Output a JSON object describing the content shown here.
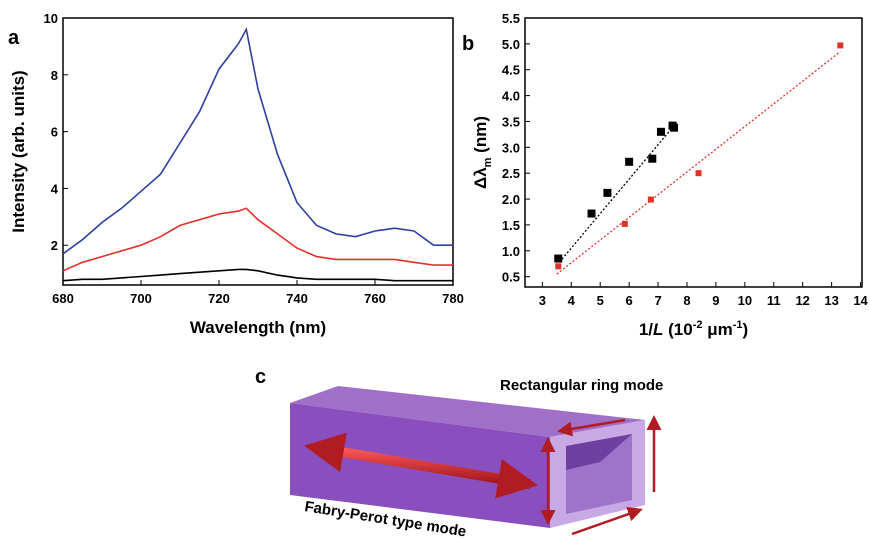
{
  "chart_data": [
    {
      "type": "line",
      "panel_label": "a",
      "xlabel": "Wavelength (nm)",
      "ylabel": "Intensity (arb. units)",
      "x": [
        680,
        685,
        690,
        695,
        700,
        705,
        710,
        715,
        720,
        725,
        727,
        730,
        735,
        740,
        745,
        750,
        755,
        760,
        765,
        770,
        775,
        780
      ],
      "series": [
        {
          "color": "#2f3fa0",
          "values": [
            1.7,
            2.2,
            2.8,
            3.3,
            3.9,
            4.5,
            5.6,
            6.7,
            8.2,
            9.1,
            9.6,
            7.5,
            5.2,
            3.5,
            2.7,
            2.4,
            2.3,
            2.5,
            2.6,
            2.5,
            2.0,
            2.0
          ]
        },
        {
          "color": "#e0322a",
          "values": [
            1.1,
            1.4,
            1.6,
            1.8,
            2.0,
            2.3,
            2.7,
            2.9,
            3.1,
            3.2,
            3.3,
            2.9,
            2.4,
            1.9,
            1.6,
            1.5,
            1.5,
            1.5,
            1.5,
            1.4,
            1.3,
            1.3
          ]
        },
        {
          "color": "#000000",
          "values": [
            0.75,
            0.8,
            0.8,
            0.85,
            0.9,
            0.95,
            1.0,
            1.05,
            1.1,
            1.15,
            1.15,
            1.1,
            0.95,
            0.85,
            0.8,
            0.8,
            0.8,
            0.8,
            0.75,
            0.75,
            0.75,
            0.75
          ]
        }
      ],
      "xlim": [
        680,
        780
      ],
      "xticks": [
        680,
        700,
        720,
        740,
        760,
        780
      ],
      "ylim": [
        0.6,
        10
      ],
      "yticks": [
        2,
        4,
        6,
        8,
        10
      ]
    },
    {
      "type": "scatter",
      "panel_label": "b",
      "xlabel_parts": [
        "1/",
        "L",
        " (10",
        "-2",
        " μm",
        "-1",
        ")"
      ],
      "ylabel_parts": [
        "Δλ",
        "m",
        " (nm)"
      ],
      "series": [
        {
          "color": "#000000",
          "x": [
            3.55,
            4.7,
            5.25,
            6.0,
            6.8,
            7.1,
            7.5,
            7.55
          ],
          "values": [
            0.85,
            1.72,
            2.12,
            2.72,
            2.78,
            3.3,
            3.42,
            3.38
          ],
          "fit": {
            "x": [
              3.5,
              7.6
            ],
            "values": [
              0.72,
              3.45
            ]
          }
        },
        {
          "color": "#e0322a",
          "x": [
            3.55,
            5.85,
            6.75,
            8.4,
            13.3
          ],
          "values": [
            0.7,
            1.52,
            1.99,
            2.5,
            4.97
          ],
          "fit": {
            "x": [
              3.5,
              13.3
            ],
            "values": [
              0.55,
              4.85
            ]
          }
        }
      ],
      "xlim": [
        2.4,
        14.05
      ],
      "xticks": [
        3,
        4,
        5,
        6,
        7,
        8,
        9,
        10,
        11,
        12,
        13,
        14
      ],
      "ylim": [
        0.3,
        5.5
      ],
      "yticks": [
        0.5,
        {
          "value": 1,
          "label": "1.0"
        },
        1.5,
        {
          "value": 2,
          "label": "2.0"
        },
        2.5,
        {
          "value": 3,
          "label": "3.0"
        },
        3.5,
        {
          "value": 4,
          "label": "4.0"
        },
        4.5,
        {
          "value": 5,
          "label": "5.0"
        },
        5.5
      ]
    }
  ],
  "diagram": {
    "panel_label": "c",
    "top_label": "Rectangular ring mode",
    "bottom_label": "Fabry-Perot type mode"
  }
}
